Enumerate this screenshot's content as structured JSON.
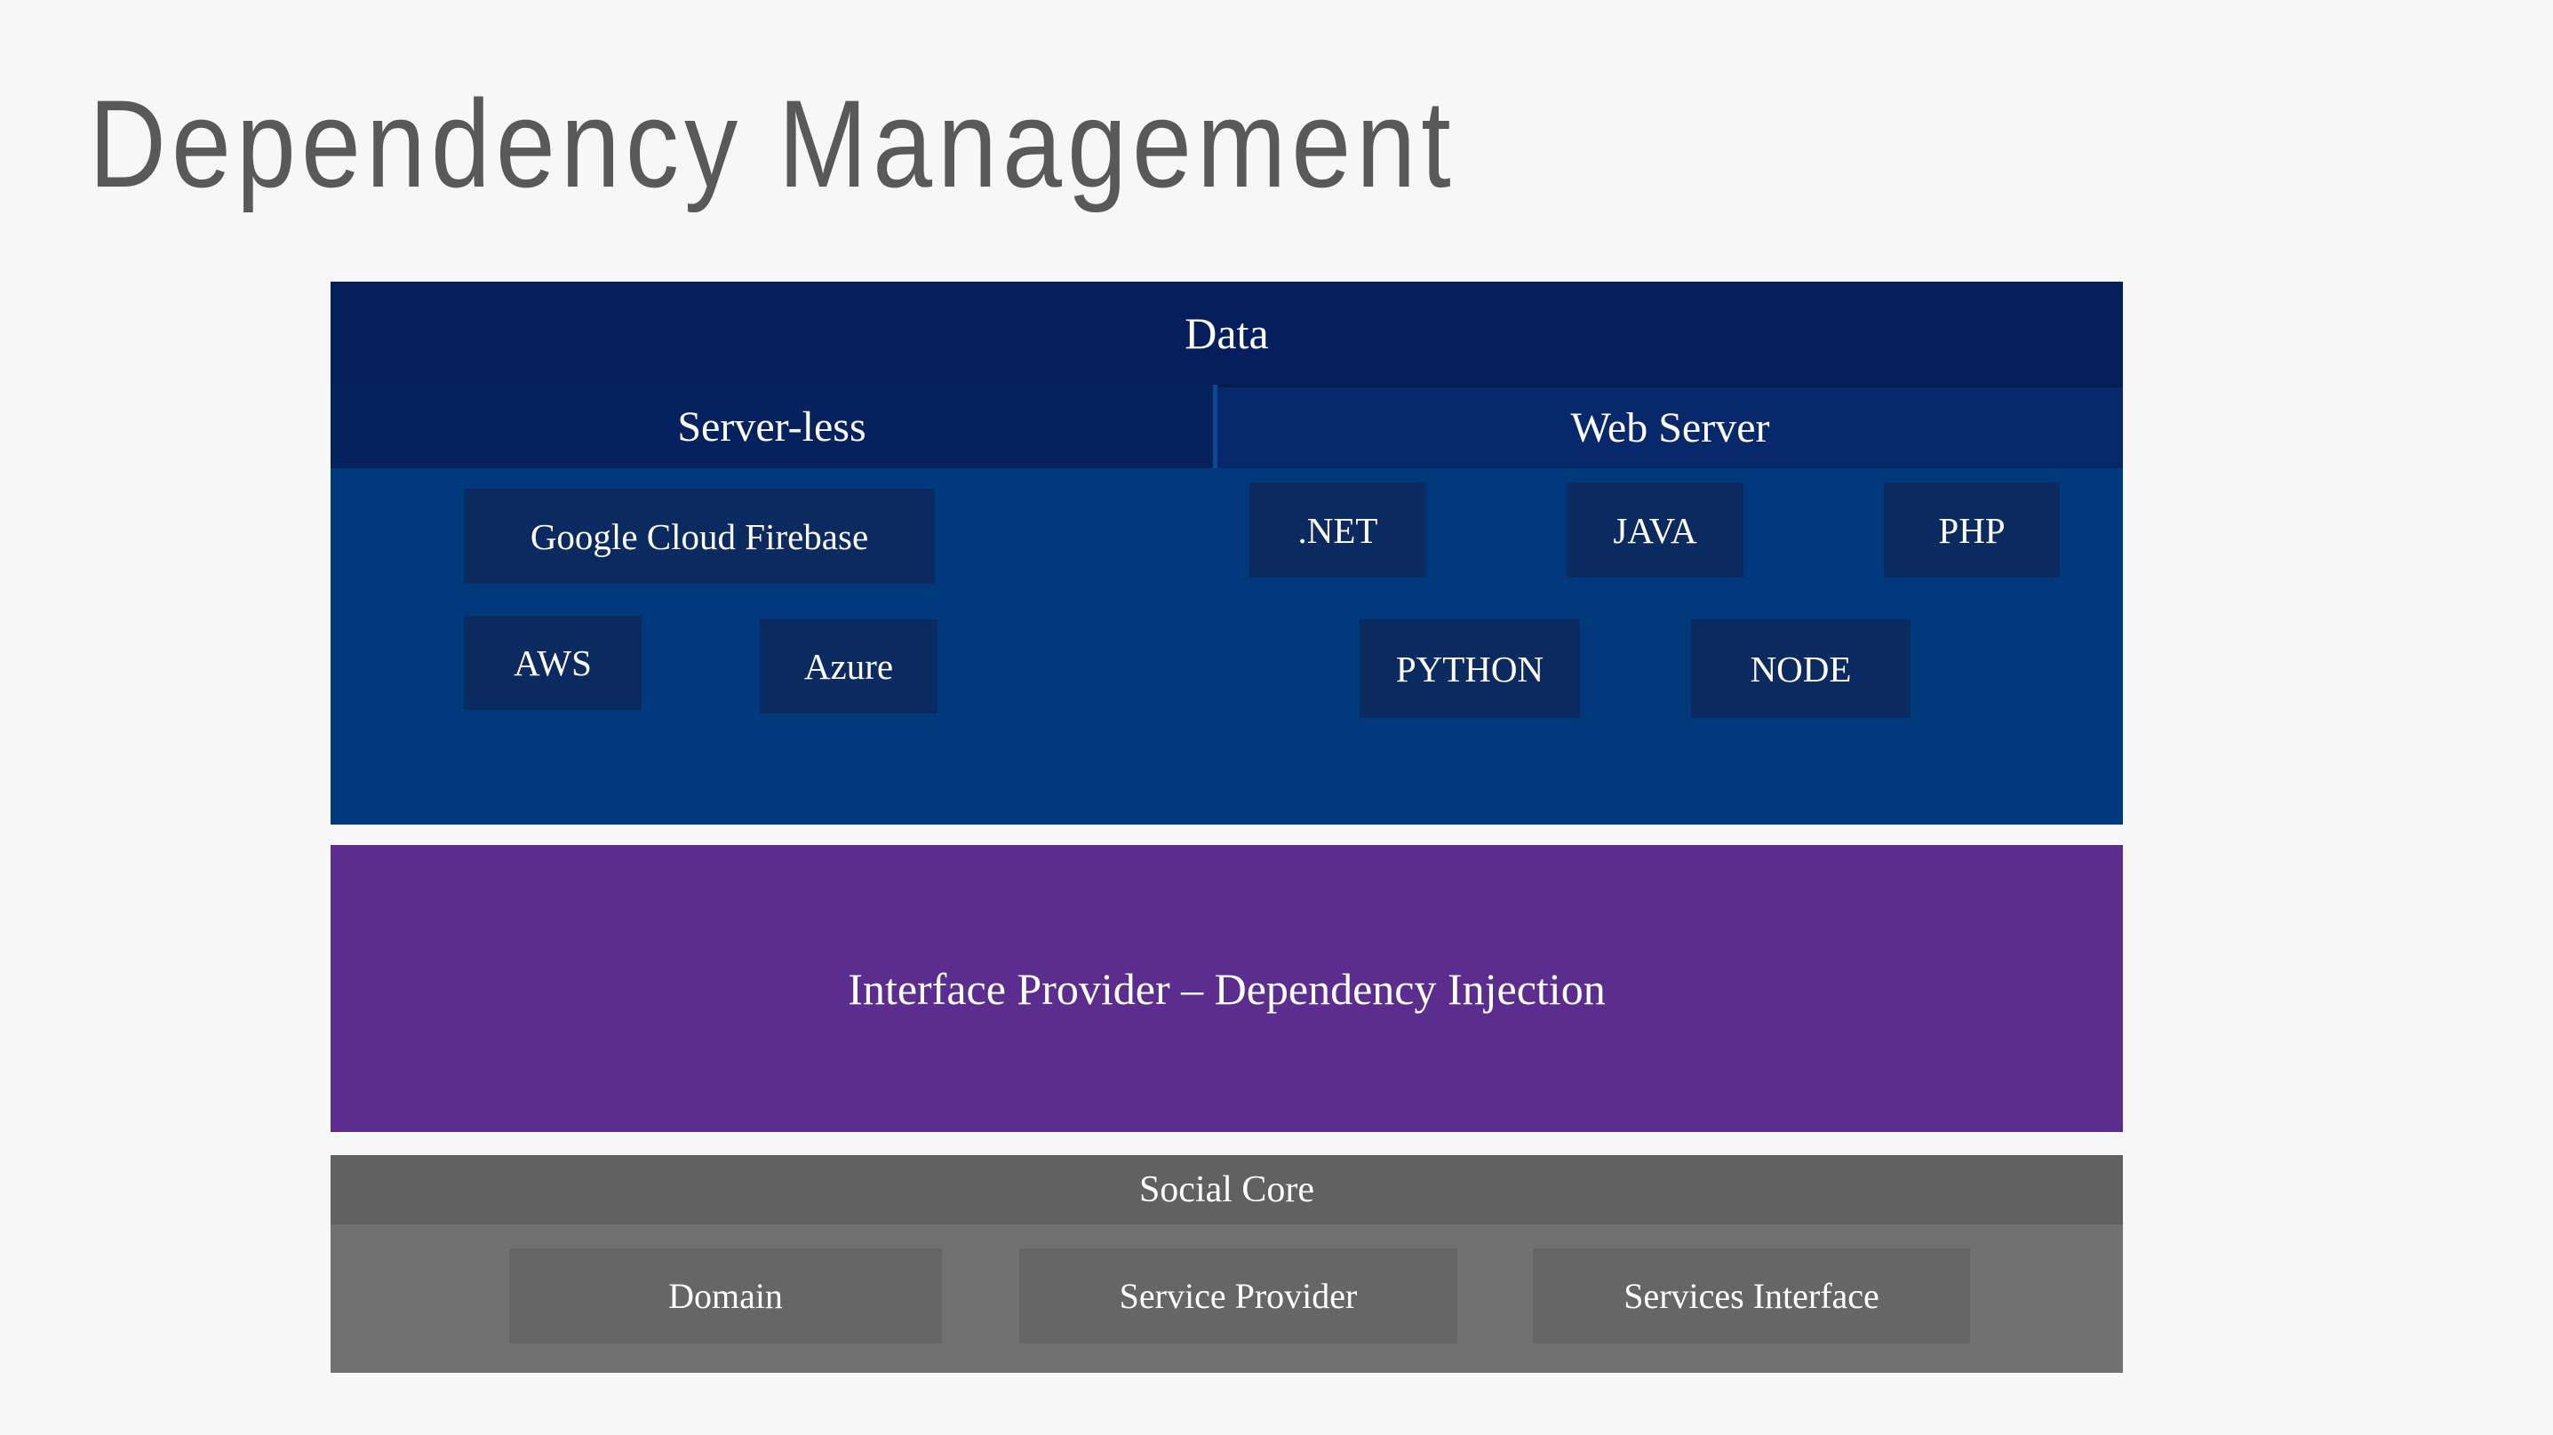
{
  "slide": {
    "title": "Dependency Management"
  },
  "diagram": {
    "data_layer": {
      "label": "Data",
      "serverless": {
        "label": "Server-less",
        "items": [
          "Google Cloud Firebase",
          "AWS",
          "Azure"
        ]
      },
      "web_server": {
        "label": "Web Server",
        "row1": [
          ".NET",
          "JAVA",
          "PHP"
        ],
        "row2": [
          "PYTHON",
          "NODE"
        ]
      }
    },
    "interface_layer": {
      "label": "Interface Provider – Dependency Injection"
    },
    "social_core": {
      "label": "Social Core",
      "items": [
        "Domain",
        "Service Provider",
        "Services Interface"
      ]
    }
  },
  "colors": {
    "page_background": "#f6f7f6",
    "title_text": "#595959",
    "data_block": "#041f5c",
    "serverless_header": "#05215e",
    "webserver_header": "#07286a",
    "data_body": "#003a7d",
    "tech_box": "#0b2a5f",
    "interface_block": "#5b2d8e",
    "social_band": "#616161",
    "social_body": "#717171",
    "social_box": "#666666",
    "label_text": "#ffffff"
  }
}
